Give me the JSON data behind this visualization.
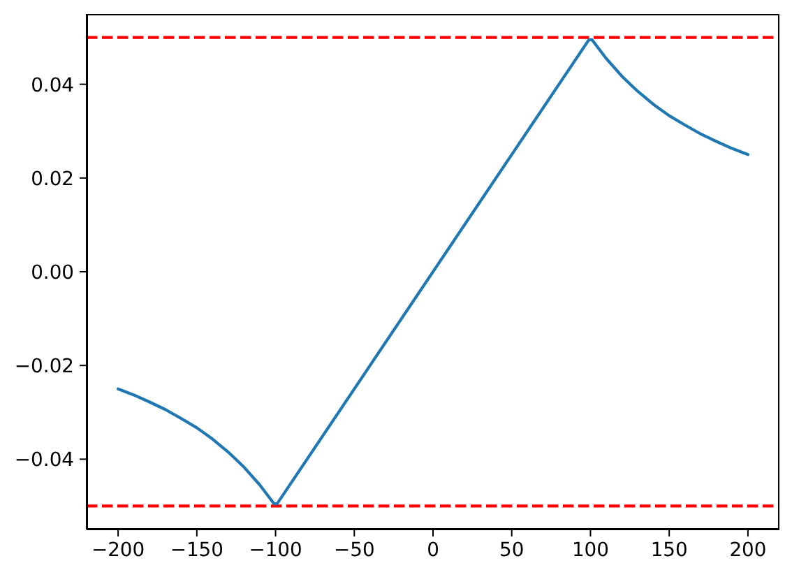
{
  "chart_data": {
    "type": "line",
    "x": [
      -200,
      -190,
      -180,
      -170,
      -160,
      -150,
      -140,
      -130,
      -120,
      -110,
      -101,
      -99,
      99,
      101,
      110,
      120,
      130,
      140,
      150,
      160,
      170,
      180,
      190,
      200
    ],
    "series": [
      {
        "color": "#1f77b4",
        "values": [
          -0.025,
          -0.0263,
          -0.0278,
          -0.0294,
          -0.0313,
          -0.0333,
          -0.0357,
          -0.0385,
          -0.0417,
          -0.0455,
          -0.0495,
          -0.0495,
          0.0495,
          0.0495,
          0.0455,
          0.0417,
          0.0385,
          0.0357,
          0.0333,
          0.0313,
          0.0294,
          0.0278,
          0.0263,
          0.025
        ]
      }
    ],
    "xlim": [
      -220,
      220
    ],
    "ylim": [
      -0.055,
      0.055
    ],
    "xticks": [
      {
        "value": -200,
        "label": "−200"
      },
      {
        "value": -150,
        "label": "−150"
      },
      {
        "value": -100,
        "label": "−100"
      },
      {
        "value": -50,
        "label": "−50"
      },
      0,
      50,
      100,
      150,
      200
    ],
    "yticks": [
      {
        "value": -0.04,
        "label": "−0.04"
      },
      {
        "value": -0.02,
        "label": "−0.02"
      },
      {
        "value": 0,
        "label": "0.00"
      },
      0.02,
      0.04
    ],
    "ref_lines": [
      {
        "axis": "y",
        "value": 0.05,
        "color": "#ff0000",
        "line_style": "dashed"
      },
      {
        "axis": "y",
        "value": -0.05,
        "color": "#ff0000",
        "line_style": "dashed"
      }
    ],
    "marker": "none"
  }
}
